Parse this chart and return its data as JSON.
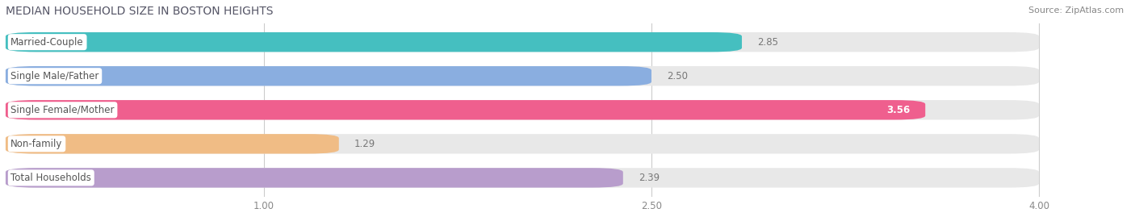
{
  "title": "MEDIAN HOUSEHOLD SIZE IN BOSTON HEIGHTS",
  "source": "Source: ZipAtlas.com",
  "categories": [
    "Married-Couple",
    "Single Male/Father",
    "Single Female/Mother",
    "Non-family",
    "Total Households"
  ],
  "values": [
    2.85,
    2.5,
    3.56,
    1.29,
    2.39
  ],
  "bar_colors": [
    "#45bfc0",
    "#8aaee0",
    "#ef5f8e",
    "#f0bc85",
    "#b89dcc"
  ],
  "xlim_min": 0.0,
  "xlim_max": 4.35,
  "data_min": 0.0,
  "data_max": 4.0,
  "xticks": [
    1.0,
    2.5,
    4.0
  ],
  "xticklabels": [
    "1.00",
    "2.50",
    "4.00"
  ],
  "background_color": "#ffffff",
  "bar_bg_color": "#e8e8e8",
  "title_fontsize": 10,
  "source_fontsize": 8,
  "label_fontsize": 8.5,
  "value_fontsize": 8.5,
  "value_inside_color": "#ffffff",
  "value_outside_color": "#777777",
  "label_text_color": "#555555"
}
